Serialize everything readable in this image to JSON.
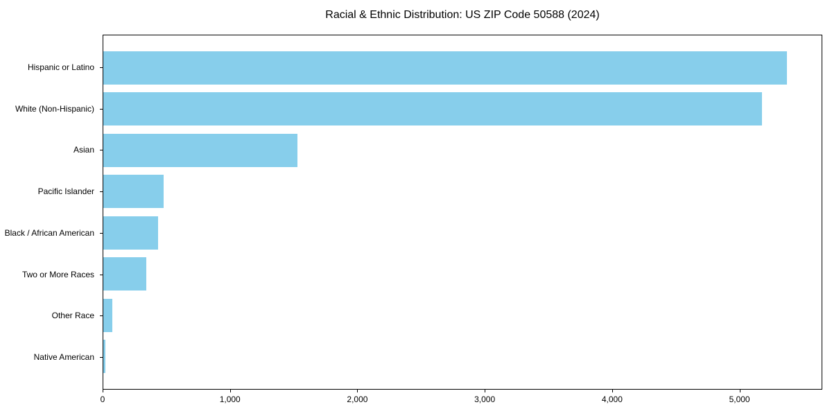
{
  "chart_data": {
    "type": "bar",
    "orientation": "horizontal",
    "title": "Racial & Ethnic Distribution: US ZIP Code 50588 (2024)",
    "categories": [
      "Hispanic or Latino",
      "White (Non-Hispanic)",
      "Asian",
      "Pacific Islander",
      "Black / African American",
      "Two or More Races",
      "Other Race",
      "Native American"
    ],
    "values": [
      5380,
      5180,
      1525,
      475,
      430,
      340,
      70,
      16
    ],
    "bar_color": "#87CEEB",
    "xlabel": "",
    "ylabel": "",
    "xlim": [
      0,
      5650
    ],
    "xticks": [
      0,
      1000,
      2000,
      3000,
      4000,
      5000
    ],
    "xtick_labels": [
      "0",
      "1,000",
      "2,000",
      "3,000",
      "4,000",
      "5,000"
    ],
    "grid": false,
    "legend": "none",
    "frame": "full-box"
  }
}
